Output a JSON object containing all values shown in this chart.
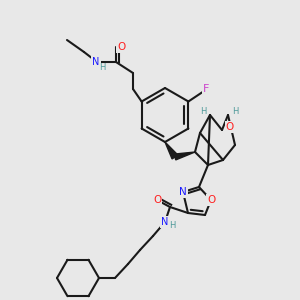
{
  "bg_color": "#e8e8e8",
  "bond_color": "#1a1a1a",
  "bond_width": 1.5,
  "figsize": [
    3.0,
    3.0
  ],
  "dpi": 100,
  "atom_colors": {
    "N": "#1a1aff",
    "O": "#ff2020",
    "F": "#cc44cc",
    "H": "#4d9999",
    "C": "#1a1a1a"
  },
  "scale": 3.0
}
